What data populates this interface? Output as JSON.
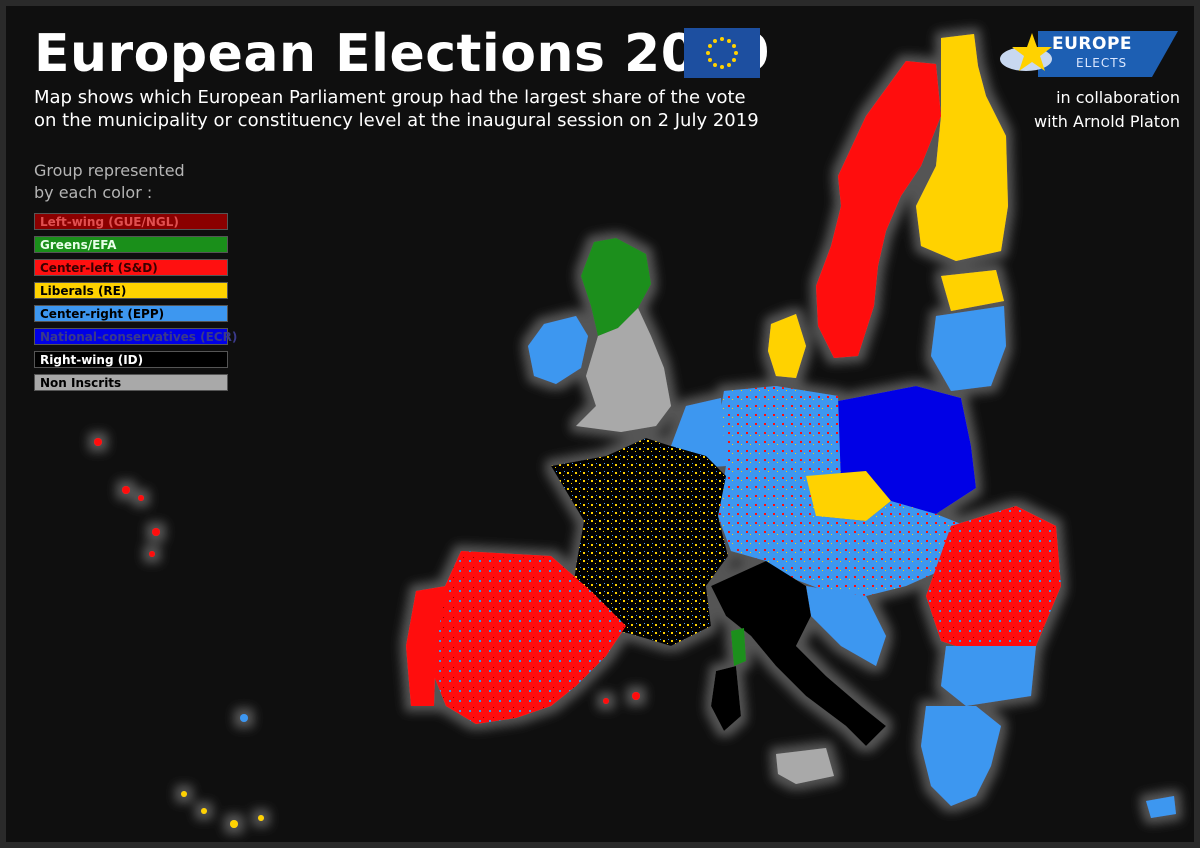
{
  "title": "European Elections 2019",
  "subtitle_line1": "Map shows which European Parliament group had the largest share of the vote",
  "subtitle_line2": "on the municipality or constituency level at the inaugural session on 2 July 2019",
  "legend": {
    "title_line1": "Group represented",
    "title_line2": "by each color :",
    "items": [
      {
        "label": "Left-wing (GUE/NGL)",
        "color": "#8b0000",
        "text_color": "#e05050"
      },
      {
        "label": "Greens/EFA",
        "color": "#1a8f1a",
        "text_color": "#e8ffe8"
      },
      {
        "label": "Center-left (S&D)",
        "color": "#ff1010",
        "text_color": "#3a0000"
      },
      {
        "label": "Liberals (RE)",
        "color": "#ffd200",
        "text_color": "#000000"
      },
      {
        "label": "Center-right (EPP)",
        "color": "#3d97f0",
        "text_color": "#000000"
      },
      {
        "label": "National-conservatives (ECR)",
        "color": "#0000e6",
        "text_color": "#3a3a8a"
      },
      {
        "label": "Right-wing (ID)",
        "color": "#000000",
        "text_color": "#ffffff"
      },
      {
        "label": "Non Inscrits",
        "color": "#a9a9a9",
        "text_color": "#000000"
      }
    ]
  },
  "logo": {
    "line1": "EUROPE",
    "line2": "ELECTS",
    "color": "#1d5fb3"
  },
  "collab_line1": "in collaboration",
  "collab_line2": "with Arnold Platon",
  "colors": {
    "background": "#0f0f0f",
    "land_glow": "#4a4a4a",
    "left": "#8b0000",
    "greens": "#1a8f1a",
    "sd": "#ff1010",
    "re": "#ffd200",
    "epp": "#3d97f0",
    "ecr": "#0000e6",
    "id": "#000000",
    "ni": "#a9a9a9"
  },
  "map_regions": [
    {
      "region": "Iceland/Atlantic",
      "group": "none"
    },
    {
      "region": "Ireland",
      "group": "epp"
    },
    {
      "region": "Scotland",
      "group": "greens"
    },
    {
      "region": "England",
      "group": "ni"
    },
    {
      "region": "Norway",
      "group": "none"
    },
    {
      "region": "Sweden",
      "group": "sd"
    },
    {
      "region": "Finland",
      "group": "re"
    },
    {
      "region": "Estonia",
      "group": "re"
    },
    {
      "region": "Latvia/Lithuania",
      "group": "epp"
    },
    {
      "region": "Denmark",
      "group": "re"
    },
    {
      "region": "Netherlands",
      "group": "epp"
    },
    {
      "region": "Belgium",
      "group": "re"
    },
    {
      "region": "Germany",
      "group": "epp"
    },
    {
      "region": "Poland",
      "group": "ecr"
    },
    {
      "region": "Czechia",
      "group": "re"
    },
    {
      "region": "France",
      "group": "id"
    },
    {
      "region": "Spain",
      "group": "sd"
    },
    {
      "region": "Portugal",
      "group": "sd"
    },
    {
      "region": "Italy",
      "group": "id"
    },
    {
      "region": "Austria",
      "group": "epp"
    },
    {
      "region": "Hungary",
      "group": "epp"
    },
    {
      "region": "Romania",
      "group": "sd"
    },
    {
      "region": "Bulgaria",
      "group": "epp"
    },
    {
      "region": "Greece",
      "group": "epp"
    },
    {
      "region": "Croatia",
      "group": "epp"
    },
    {
      "region": "Cyprus",
      "group": "epp"
    },
    {
      "region": "Sardinia",
      "group": "id"
    },
    {
      "region": "Sicily",
      "group": "ni"
    },
    {
      "region": "Corsica",
      "group": "id"
    }
  ]
}
